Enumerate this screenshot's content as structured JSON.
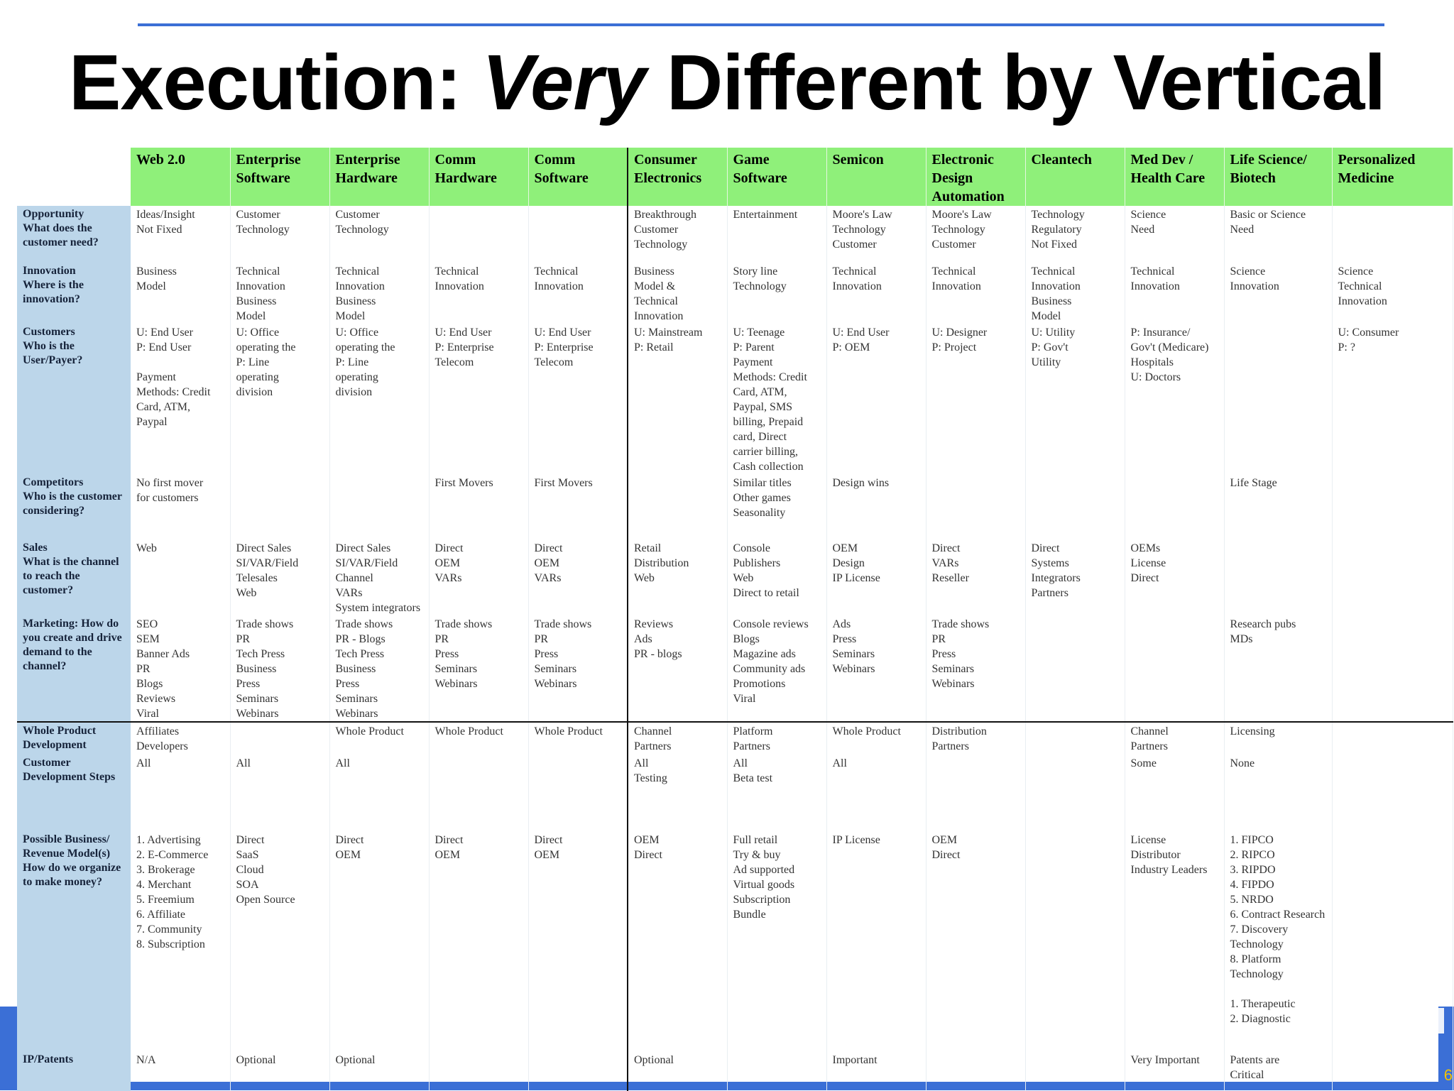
{
  "slide": {
    "title_part1": "Execution: ",
    "title_emphasis": "Very",
    "title_part2": " Different by Vertical",
    "page_number": "6"
  },
  "table": {
    "columns": [
      "Web 2.0",
      "Enterprise Software",
      "Enterprise Hardware",
      "Comm Hardware",
      "Comm Software",
      "Consumer Electronics",
      "Game Software",
      "Semicon",
      "Electronic Design Automation",
      "Cleantech",
      "Med Dev / Health Care",
      "Life Science/ Biotech",
      "Personalized Medicine"
    ],
    "rows": [
      {
        "header": "Opportunity\nWhat does the customer need?",
        "cells": [
          "Ideas/Insight\nNot Fixed",
          "Customer\nTechnology",
          "Customer\nTechnology",
          "",
          "",
          "Breakthrough\nCustomer\nTechnology",
          "Entertainment",
          "Moore's Law\nTechnology\nCustomer",
          "Moore's Law\nTechnology\nCustomer",
          "Technology\nRegulatory\nNot Fixed",
          "Science\nNeed",
          "Basic or Science\nNeed",
          ""
        ]
      },
      {
        "header": "Innovation\nWhere is the innovation?",
        "cells": [
          "Business\nModel",
          "Technical\nInnovation\nBusiness\nModel",
          "Technical\nInnovation\nBusiness\nModel",
          "Technical\nInnovation",
          "Technical\nInnovation",
          "Business\nModel &\nTechnical\nInnovation",
          "Story line\nTechnology",
          "Technical\nInnovation",
          "Technical\nInnovation",
          "Technical\nInnovation\nBusiness\nModel",
          "Technical\nInnovation",
          "Science\nInnovation",
          "Science\nTechnical\nInnovation"
        ]
      },
      {
        "header": "Customers\nWho is the User/Payer?",
        "cells": [
          "U: End User\nP: End User\n\nPayment\nMethods: Credit\nCard, ATM,\nPaypal",
          "U: Office\noperating the\nP: Line\noperating\ndivision",
          "U: Office\noperating the\nP: Line\noperating\ndivision",
          "U: End User\nP: Enterprise\nTelecom",
          "U: End User\nP: Enterprise\nTelecom",
          "U: Mainstream\nP: Retail",
          "U: Teenage\nP: Parent\nPayment\nMethods: Credit\nCard, ATM,\nPaypal, SMS\nbilling, Prepaid\ncard, Direct\ncarrier billing,\nCash collection",
          "U: End User\nP: OEM",
          "U: Designer\nP: Project",
          "U: Utility\nP: Gov't\nUtility",
          "P: Insurance/\nGov't (Medicare)\nHospitals\nU: Doctors",
          "",
          "U: Consumer\nP: ?"
        ]
      },
      {
        "header": "Competitors\nWho is the customer considering?",
        "cells": [
          "No first mover\nfor customers",
          "",
          "",
          "First Movers",
          "First Movers",
          "",
          "Similar titles\nOther games\nSeasonality",
          "Design wins",
          "",
          "",
          "",
          "Life Stage",
          ""
        ]
      },
      {
        "header": "Sales\nWhat is the channel to reach the customer?",
        "cells": [
          "Web",
          "Direct Sales\nSI/VAR/Field\nTelesales\nWeb",
          "Direct Sales\nSI/VAR/Field\nChannel\nVARs\nSystem integrators",
          "Direct\nOEM\nVARs",
          "Direct\nOEM\nVARs",
          "Retail\nDistribution\nWeb",
          "Console\nPublishers\nWeb\nDirect to retail",
          "OEM\nDesign\nIP License",
          "Direct\nVARs\nReseller",
          "Direct\nSystems\nIntegrators\nPartners",
          "OEMs\nLicense\nDirect",
          "",
          ""
        ]
      },
      {
        "header": "Marketing: How do you create and drive demand to the channel?",
        "cells": [
          "SEO\nSEM\nBanner Ads\nPR\nBlogs\nReviews\nViral",
          "Trade shows\nPR\nTech Press\nBusiness\nPress\nSeminars\nWebinars",
          "Trade shows\nPR - Blogs\nTech Press\nBusiness\nPress\nSeminars\nWebinars",
          "Trade shows\nPR\nPress\nSeminars\nWebinars",
          "Trade shows\nPR\nPress\nSeminars\nWebinars",
          "Reviews\nAds\nPR - blogs",
          "Console reviews\nBlogs\nMagazine ads\nCommunity ads\nPromotions\nViral",
          "Ads\nPress\nSeminars\nWebinars",
          "Trade shows\nPR\nPress\nSeminars\nWebinars",
          "",
          "",
          "Research pubs\nMDs",
          ""
        ]
      },
      {
        "header": "Whole Product Development",
        "cells": [
          "Affiliates\nDevelopers",
          "",
          "Whole Product",
          "Whole Product",
          "Whole Product",
          "Channel\nPartners",
          "Platform\nPartners",
          "Whole Product",
          "Distribution\nPartners",
          "",
          "Channel\nPartners",
          "Licensing",
          ""
        ]
      },
      {
        "header": "Customer Development Steps",
        "cells": [
          "All",
          "All",
          "All",
          "",
          "",
          "All\nTesting",
          "All\nBeta test",
          "All",
          "",
          "",
          "Some",
          "None",
          ""
        ]
      },
      {
        "header": "Possible Business/ Revenue Model(s)\nHow do we organize to make money?",
        "cells": [
          "1. Advertising\n2. E-Commerce\n3. Brokerage\n4. Merchant\n5. Freemium\n6. Affiliate\n7. Community\n8. Subscription",
          "Direct\nSaaS\nCloud\nSOA\nOpen Source",
          "Direct\nOEM",
          "Direct\nOEM",
          "Direct\nOEM",
          "OEM\nDirect",
          "Full retail\nTry & buy\nAd supported\nVirtual goods\nSubscription\nBundle",
          "IP License",
          "OEM\nDirect",
          "",
          "License\nDistributor\nIndustry Leaders",
          "1. FIPCO\n2. RIPCO\n3. RIPDO\n4. FIPDO\n5. NRDO\n6. Contract Research\n7. Discovery Technology\n8. Platform Technology\n\n1. Therapeutic\n2. Diagnostic",
          ""
        ]
      },
      {
        "header": "IP/Patents",
        "cells": [
          "N/A",
          "Optional",
          "Optional",
          "",
          "",
          "Optional",
          "",
          "Important",
          "",
          "",
          "Very Important",
          "Patents are\nCritical",
          ""
        ]
      }
    ]
  }
}
